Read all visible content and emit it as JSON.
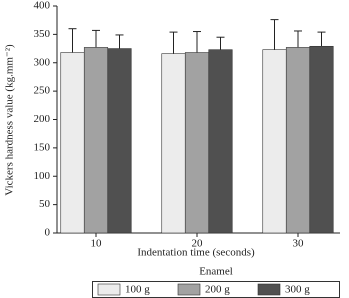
{
  "chart_data": {
    "type": "bar",
    "y_label": "Vickers hardness value (kg.mm⁻²)",
    "x_label": "Indentation time (seconds)",
    "legend_title": "Enamel",
    "categories": [
      "10",
      "20",
      "30"
    ],
    "series": [
      {
        "name": "100 g",
        "color": "#ececec",
        "values": [
          318,
          316,
          323
        ],
        "errors": [
          42,
          38,
          53
        ]
      },
      {
        "name": "200 g",
        "color": "#a2a2a2",
        "values": [
          327,
          318,
          327
        ],
        "errors": [
          30,
          37,
          29
        ]
      },
      {
        "name": "300 g",
        "color": "#505050",
        "values": [
          325,
          323,
          329
        ],
        "errors": [
          24,
          22,
          25
        ]
      }
    ],
    "ylim": [
      0,
      400
    ],
    "yticks": [
      0,
      50,
      100,
      150,
      200,
      250,
      300,
      350,
      400
    ],
    "legend_position": "bottom"
  }
}
